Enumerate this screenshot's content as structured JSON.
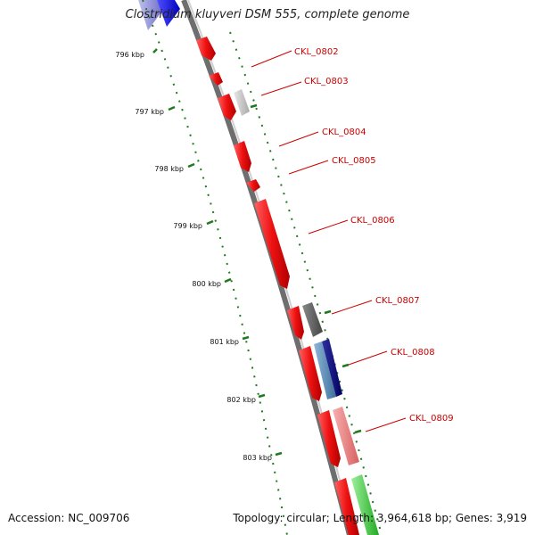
{
  "title": "Clostridium kluyveri DSM 555, complete genome",
  "accession": "Accession: NC_009706",
  "genome_info": "Topology: circular; Length: 3,964,618 bp; Genes: 3,919",
  "colors": {
    "backbone": "#8f8f8f",
    "tick": "#1f7a1f",
    "gene_red": "#ee1111",
    "label": "#cc0000"
  },
  "ruler": [
    {
      "label": "796 kbp"
    },
    {
      "label": "797 kbp"
    },
    {
      "label": "798 kbp"
    },
    {
      "label": "799 kbp"
    },
    {
      "label": "800 kbp"
    },
    {
      "label": "801 kbp"
    },
    {
      "label": "802 kbp"
    },
    {
      "label": "803 kbp"
    }
  ],
  "gene_labels": [
    {
      "text": "CKL_0802"
    },
    {
      "text": "CKL_0803"
    },
    {
      "text": "CKL_0804"
    },
    {
      "text": "CKL_0805"
    },
    {
      "text": "CKL_0806"
    },
    {
      "text": "CKL_0807"
    },
    {
      "text": "CKL_0808"
    },
    {
      "text": "CKL_0809"
    }
  ]
}
